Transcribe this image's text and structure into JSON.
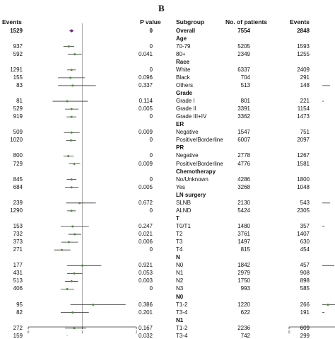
{
  "panel_b_label": "B",
  "headers": {
    "events_left": "Events",
    "pvalue": "P value",
    "subgroup": "Subgroup",
    "patients": "No. of patients",
    "events_right": "Events"
  },
  "left_axis_ticks": [
    "0",
    "1",
    "2"
  ],
  "right_axis_ticks": [
    "0"
  ],
  "colors": {
    "overall_marker": "#7a2d86",
    "point": "#4e8a3a",
    "axis": "#333333",
    "refline": "#999999"
  },
  "rows": [
    {
      "label": "Overall",
      "type": "overall",
      "patients": "7554",
      "events": "2848",
      "left_events": "1529",
      "pvalue": "0",
      "est": 0.8,
      "lo": 0.76,
      "hi": 0.84
    },
    {
      "label": "Age",
      "type": "group"
    },
    {
      "label": "70-79",
      "type": "item",
      "patients": "5205",
      "events": "1593",
      "left_events": "937",
      "pvalue": "0",
      "est": 0.75,
      "lo": 0.65,
      "hi": 0.85
    },
    {
      "label": "80+",
      "type": "item",
      "patients": "2349",
      "events": "1255",
      "left_events": "592",
      "pvalue": "0.041",
      "est": 0.86,
      "lo": 0.73,
      "hi": 0.99
    },
    {
      "label": "Race",
      "type": "group"
    },
    {
      "label": "White",
      "type": "item",
      "patients": "6337",
      "events": "2409",
      "left_events": "1291",
      "pvalue": "0",
      "est": 0.8,
      "lo": 0.72,
      "hi": 0.88
    },
    {
      "label": "Black",
      "type": "item",
      "patients": "704",
      "events": "291",
      "left_events": "155",
      "pvalue": "0.096",
      "est": 0.78,
      "lo": 0.55,
      "hi": 1.05
    },
    {
      "label": "Others",
      "type": "item",
      "patients": "513",
      "events": "148",
      "left_events": "83",
      "pvalue": "0.337",
      "est": 0.82,
      "lo": 0.55,
      "hi": 1.25
    },
    {
      "label": "Grade",
      "type": "group"
    },
    {
      "label": "Grade I",
      "type": "item",
      "patients": "801",
      "events": "221",
      "left_events": "81",
      "pvalue": "0.114",
      "est": 0.72,
      "lo": 0.45,
      "hi": 1.1
    },
    {
      "label": "Grade II",
      "type": "item",
      "patients": "3391",
      "events": "1154",
      "left_events": "529",
      "pvalue": "0.005",
      "est": 0.8,
      "lo": 0.68,
      "hi": 0.93
    },
    {
      "label": "Grade III+IV",
      "type": "item",
      "patients": "3362",
      "events": "1473",
      "left_events": "919",
      "pvalue": "0",
      "est": 0.8,
      "lo": 0.71,
      "hi": 0.89
    },
    {
      "label": "ER",
      "type": "group"
    },
    {
      "label": "Negative",
      "type": "item",
      "patients": "1547",
      "events": "751",
      "left_events": "509",
      "pvalue": "0.009",
      "est": 0.8,
      "lo": 0.66,
      "hi": 0.95
    },
    {
      "label": "Positive/Borderline",
      "type": "item",
      "patients": "6007",
      "events": "2097",
      "left_events": "1020",
      "pvalue": "0",
      "est": 0.79,
      "lo": 0.7,
      "hi": 0.88
    },
    {
      "label": "PR",
      "type": "group"
    },
    {
      "label": "Negative",
      "type": "item",
      "patients": "2778",
      "events": "1267",
      "left_events": "800",
      "pvalue": "0",
      "est": 0.74,
      "lo": 0.65,
      "hi": 0.84
    },
    {
      "label": "Positive/Borderline",
      "type": "item",
      "patients": "4776",
      "events": "1581",
      "left_events": "729",
      "pvalue": "0.009",
      "est": 0.85,
      "lo": 0.75,
      "hi": 0.96
    },
    {
      "label": "Chemotherapy",
      "type": "group"
    },
    {
      "label": "No/Unknown",
      "type": "item",
      "patients": "4286",
      "events": "1800",
      "left_events": "845",
      "pvalue": "0",
      "est": 0.8,
      "lo": 0.71,
      "hi": 0.89
    },
    {
      "label": "Yes",
      "type": "item",
      "patients": "3268",
      "events": "1048",
      "left_events": "684",
      "pvalue": "0.005",
      "est": 0.8,
      "lo": 0.68,
      "hi": 0.93
    },
    {
      "label": "LN surgery",
      "type": "group"
    },
    {
      "label": "SLNB",
      "type": "item",
      "patients": "2130",
      "events": "543",
      "left_events": "239",
      "pvalue": "0.672",
      "est": 0.95,
      "lo": 0.7,
      "hi": 1.25
    },
    {
      "label": "ALND",
      "type": "item",
      "patients": "5424",
      "events": "2305",
      "left_events": "1290",
      "pvalue": "0",
      "est": 0.8,
      "lo": 0.72,
      "hi": 0.88
    },
    {
      "label": "T",
      "type": "group"
    },
    {
      "label": "T0/T1",
      "type": "item",
      "patients": "1480",
      "events": "357",
      "left_events": "153",
      "pvalue": "0.247",
      "est": 0.82,
      "lo": 0.6,
      "hi": 1.12
    },
    {
      "label": "T2",
      "type": "item",
      "patients": "3761",
      "events": "1407",
      "left_events": "732",
      "pvalue": "0.021",
      "est": 0.86,
      "lo": 0.74,
      "hi": 0.98
    },
    {
      "label": "T3",
      "type": "item",
      "patients": "1497",
      "events": "630",
      "left_events": "373",
      "pvalue": "0.006",
      "est": 0.75,
      "lo": 0.61,
      "hi": 0.92
    },
    {
      "label": "T4",
      "type": "item",
      "patients": "815",
      "events": "454",
      "left_events": "271",
      "pvalue": "0",
      "est": 0.62,
      "lo": 0.48,
      "hi": 0.78
    },
    {
      "label": "N",
      "type": "group"
    },
    {
      "label": "N0",
      "type": "item",
      "patients": "1842",
      "events": "457",
      "left_events": "177",
      "pvalue": "0.921",
      "est": 1.0,
      "lo": 0.72,
      "hi": 1.35
    },
    {
      "label": "N1",
      "type": "item",
      "patients": "2979",
      "events": "908",
      "left_events": "431",
      "pvalue": "0.053",
      "est": 0.85,
      "lo": 0.72,
      "hi": 1.0
    },
    {
      "label": "N2",
      "type": "item",
      "patients": "1750",
      "events": "898",
      "left_events": "513",
      "pvalue": "0.003",
      "est": 0.8,
      "lo": 0.68,
      "hi": 0.92
    },
    {
      "label": "N3",
      "type": "item",
      "patients": "993",
      "events": "585",
      "left_events": "406",
      "pvalue": "0",
      "est": 0.72,
      "lo": 0.6,
      "hi": 0.85
    },
    {
      "label": "N0",
      "type": "group"
    },
    {
      "label": "T1-2",
      "type": "item",
      "patients": "1220",
      "events": "266",
      "left_events": "95",
      "pvalue": "0.386",
      "est": 1.2,
      "lo": 0.78,
      "hi": 1.8
    },
    {
      "label": "T3-4",
      "type": "item",
      "patients": "622",
      "events": "191",
      "left_events": "82",
      "pvalue": "0.201",
      "est": 0.82,
      "lo": 0.6,
      "hi": 1.12
    },
    {
      "label": "N1",
      "type": "group"
    },
    {
      "label": "T1-2",
      "type": "item",
      "patients": "2236",
      "events": "609",
      "left_events": "272",
      "pvalue": "0.167",
      "est": 0.85,
      "lo": 0.68,
      "hi": 1.07
    },
    {
      "label": "T3-4",
      "type": "item",
      "patients": "742",
      "events": "299",
      "left_events": "159",
      "pvalue": "0.032",
      "est": 0.72,
      "lo": 0.55,
      "hi": 0.97
    }
  ]
}
